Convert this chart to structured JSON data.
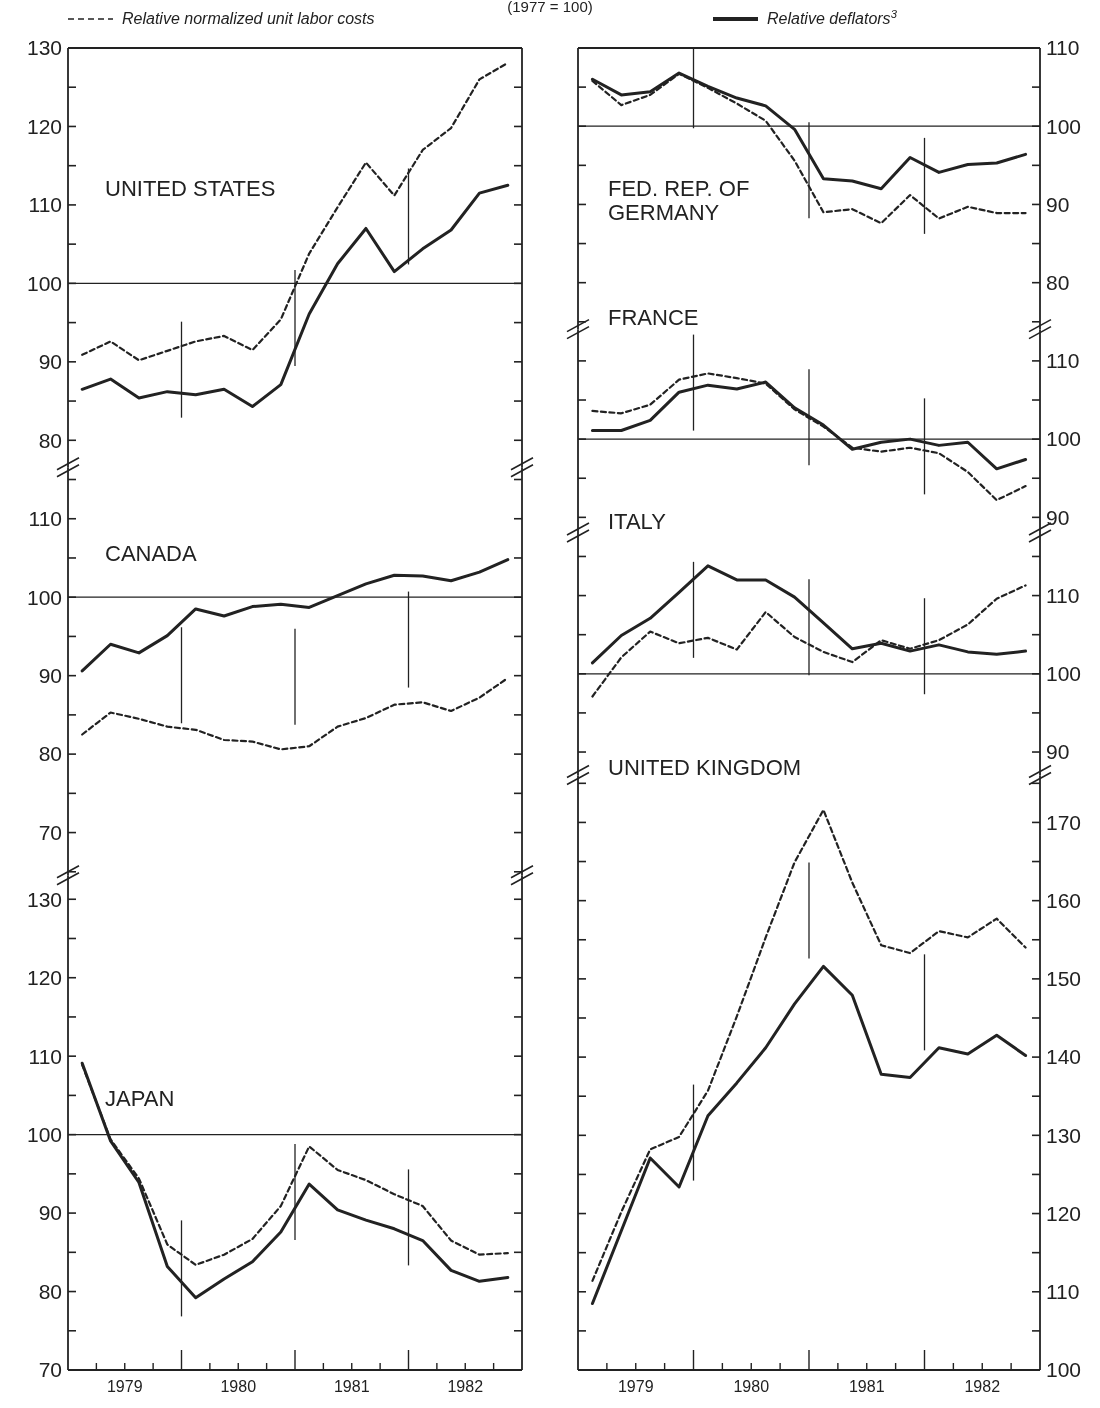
{
  "chart_data": [
    {
      "type": "line",
      "subtitle": "(1977 = 100)",
      "title": "UNITED STATES",
      "legend": "top",
      "tick_labels": "y",
      "x": [
        1979.125,
        1979.375,
        1979.625,
        1979.875,
        1980.125,
        1980.375,
        1980.625,
        1980.875,
        1981.125,
        1981.375,
        1981.625,
        1981.875,
        1982.125,
        1982.375,
        1982.625,
        1982.875
      ],
      "xlim": [
        1979,
        1983
      ],
      "ylim": [
        76.5,
        130
      ],
      "yticks": [
        80,
        {
          "value": 85,
          "label": null
        },
        90,
        {
          "value": 95,
          "label": null
        },
        100,
        {
          "value": 105,
          "label": null
        },
        110,
        {
          "value": 115,
          "label": null
        },
        120,
        {
          "value": 125,
          "label": null
        },
        130
      ],
      "series": [
        {
          "name": "Relative normalized unit labor costs",
          "color": "#222222",
          "line_style": "dashed",
          "values": [
            90.9,
            92.6,
            90.2,
            91.4,
            92.6,
            93.3,
            91.5,
            95.4,
            103.8,
            109.7,
            115.4,
            111.2,
            117.0,
            119.8,
            126.0,
            128.1
          ]
        },
        {
          "name": "Relative deflators$^{3}$",
          "color": "#222222",
          "line_style": "solid",
          "values": [
            86.5,
            87.8,
            85.4,
            86.2,
            85.8,
            86.5,
            84.3,
            87.1,
            96.1,
            102.5,
            107.0,
            101.5,
            104.4,
            106.8,
            111.5,
            112.5
          ]
        }
      ],
      "ref_lines": [
        {
          "axis": "y",
          "value": 100
        },
        {
          "axis": "x",
          "value": 1980
        },
        {
          "axis": "x",
          "value": 1981
        },
        {
          "axis": "x",
          "value": 1982
        }
      ]
    },
    {
      "type": "line",
      "title": "CANADA",
      "tick_labels": "y",
      "x": [
        1979.125,
        1979.375,
        1979.625,
        1979.875,
        1980.125,
        1980.375,
        1980.625,
        1980.875,
        1981.125,
        1981.375,
        1981.625,
        1981.875,
        1982.125,
        1982.375,
        1982.625,
        1982.875
      ],
      "xlim": [
        1979,
        1983
      ],
      "ylim": [
        64.5,
        116.5
      ],
      "yticks": [
        {
          "value": 65,
          "label": null
        },
        70,
        {
          "value": 75,
          "label": null
        },
        80,
        {
          "value": 85,
          "label": null
        },
        90,
        {
          "value": 95,
          "label": null
        },
        100,
        {
          "value": 105,
          "label": null
        },
        110,
        {
          "value": 115,
          "label": null
        }
      ],
      "series": [
        {
          "color": "#222222",
          "line_style": "dashed",
          "values": [
            82.5,
            85.3,
            84.5,
            83.5,
            83.1,
            81.8,
            81.6,
            80.6,
            81.0,
            83.5,
            84.6,
            86.3,
            86.6,
            85.5,
            87.2,
            89.7
          ]
        },
        {
          "color": "#222222",
          "line_style": "solid",
          "values": [
            90.6,
            94.0,
            92.9,
            95.1,
            98.5,
            97.6,
            98.8,
            99.1,
            98.7,
            100.2,
            101.7,
            102.8,
            102.7,
            102.1,
            103.2,
            104.8
          ]
        }
      ],
      "ref_lines": [
        {
          "axis": "y",
          "value": 100
        },
        {
          "axis": "x",
          "value": 1980
        },
        {
          "axis": "x",
          "value": 1981
        },
        {
          "axis": "x",
          "value": 1982
        }
      ]
    },
    {
      "type": "line",
      "title": "JAPAN",
      "x": [
        1979.125,
        1979.375,
        1979.625,
        1979.875,
        1980.125,
        1980.375,
        1980.625,
        1980.875,
        1981.125,
        1981.375,
        1981.625,
        1981.875,
        1982.125,
        1982.375,
        1982.625,
        1982.875
      ],
      "xlim": [
        1979,
        1983
      ],
      "xticks": [
        {
          "value": 1979.25,
          "label": null
        },
        {
          "value": 1979.5,
          "label": "1979"
        },
        {
          "value": 1979.75,
          "label": null
        },
        {
          "value": 1980.25,
          "label": null
        },
        {
          "value": 1980.5,
          "label": "1980"
        },
        {
          "value": 1980.75,
          "label": null
        },
        {
          "value": 1981.25,
          "label": null
        },
        {
          "value": 1981.5,
          "label": "1981"
        },
        {
          "value": 1981.75,
          "label": null
        },
        {
          "value": 1982.25,
          "label": null
        },
        {
          "value": 1982.5,
          "label": "1982"
        },
        {
          "value": 1982.75,
          "label": null
        }
      ],
      "ylim": [
        70,
        133
      ],
      "yticks": [
        70,
        {
          "value": 75,
          "label": null
        },
        80,
        {
          "value": 85,
          "label": null
        },
        90,
        {
          "value": 95,
          "label": null
        },
        100,
        {
          "value": 105,
          "label": null
        },
        110,
        {
          "value": 115,
          "label": null
        },
        120,
        {
          "value": 125,
          "label": null
        },
        130
      ],
      "series": [
        {
          "color": "#222222",
          "line_style": "dashed",
          "values": [
            108.9,
            99.4,
            94.4,
            86.0,
            83.4,
            84.7,
            86.7,
            90.9,
            98.5,
            95.5,
            94.2,
            92.4,
            90.9,
            86.5,
            84.7,
            84.9
          ]
        },
        {
          "color": "#222222",
          "line_style": "solid",
          "values": [
            109.1,
            99.2,
            93.9,
            83.2,
            79.2,
            81.6,
            83.8,
            87.6,
            93.7,
            90.4,
            89.1,
            88.0,
            86.5,
            82.7,
            81.3,
            81.8
          ]
        }
      ],
      "ref_lines": [
        {
          "axis": "y",
          "value": 100
        },
        {
          "axis": "x",
          "value": 1980
        },
        {
          "axis": "x",
          "value": 1981
        },
        {
          "axis": "x",
          "value": 1982
        }
      ]
    },
    {
      "type": "line",
      "title": "FED. REP. OF\nGERMANY",
      "tick_labels": "y",
      "x": [
        1979.125,
        1979.375,
        1979.625,
        1979.875,
        1980.125,
        1980.375,
        1980.625,
        1980.875,
        1981.125,
        1981.375,
        1981.625,
        1981.875,
        1982.125,
        1982.375,
        1982.625,
        1982.875
      ],
      "xlim": [
        1979,
        1983
      ],
      "ylim": [
        74,
        110
      ],
      "yticks": [
        {
          "value": 75,
          "label": null
        },
        80,
        {
          "value": 85,
          "label": null
        },
        90,
        {
          "value": 95,
          "label": null
        },
        100,
        {
          "value": 105,
          "label": null
        },
        110
      ],
      "series": [
        {
          "color": "#222222",
          "line_style": "dashed",
          "values": [
            105.8,
            102.7,
            104.0,
            106.7,
            104.9,
            102.9,
            100.7,
            95.6,
            89.0,
            89.4,
            87.6,
            91.2,
            88.2,
            89.7,
            88.9,
            88.9
          ]
        },
        {
          "color": "#222222",
          "line_style": "solid",
          "values": [
            106.0,
            104.0,
            104.4,
            106.8,
            105.1,
            103.6,
            102.6,
            99.6,
            93.3,
            93.0,
            92.0,
            96.0,
            94.1,
            95.1,
            95.3,
            96.4
          ]
        }
      ],
      "ref_lines": [
        {
          "axis": "y",
          "value": 100
        },
        {
          "axis": "x",
          "value": 1980
        },
        {
          "axis": "x",
          "value": 1981
        },
        {
          "axis": "x",
          "value": 1982
        }
      ]
    },
    {
      "type": "line",
      "title": "FRANCE",
      "tick_labels": "y",
      "x": [
        1979.125,
        1979.375,
        1979.625,
        1979.875,
        1980.125,
        1980.375,
        1980.625,
        1980.875,
        1981.125,
        1981.375,
        1981.625,
        1981.875,
        1982.125,
        1982.375,
        1982.625,
        1982.875
      ],
      "xlim": [
        1979,
        1983
      ],
      "ylim": [
        88,
        114
      ],
      "yticks": [
        90,
        {
          "value": 95,
          "label": null
        },
        100,
        {
          "value": 105,
          "label": null
        },
        110
      ],
      "series": [
        {
          "color": "#222222",
          "line_style": "dashed",
          "values": [
            103.6,
            103.3,
            104.4,
            107.6,
            108.4,
            107.8,
            107.1,
            103.8,
            101.6,
            98.9,
            98.4,
            98.9,
            98.2,
            95.8,
            92.2,
            94.0
          ]
        },
        {
          "color": "#222222",
          "line_style": "solid",
          "values": [
            101.1,
            101.1,
            102.4,
            106.0,
            106.9,
            106.4,
            107.3,
            104.0,
            101.8,
            98.7,
            99.6,
            100.0,
            99.2,
            99.6,
            96.2,
            97.4
          ]
        }
      ],
      "ref_lines": [
        {
          "axis": "y",
          "value": 100
        },
        {
          "axis": "x",
          "value": 1980
        },
        {
          "axis": "x",
          "value": 1981
        },
        {
          "axis": "x",
          "value": 1982
        }
      ]
    },
    {
      "type": "line",
      "title": "ITALY",
      "tick_labels": "y",
      "x": [
        1979.125,
        1979.375,
        1979.625,
        1979.875,
        1980.125,
        1980.375,
        1980.625,
        1980.875,
        1981.125,
        1981.375,
        1981.625,
        1981.875,
        1982.125,
        1982.375,
        1982.625,
        1982.875
      ],
      "xlim": [
        1979,
        1983
      ],
      "ylim": [
        87,
        118
      ],
      "yticks": [
        90,
        {
          "value": 95,
          "label": null
        },
        100,
        {
          "value": 105,
          "label": null
        },
        110,
        {
          "value": 115,
          "label": null
        }
      ],
      "series": [
        {
          "color": "#222222",
          "line_style": "dashed",
          "values": [
            97.1,
            102.1,
            105.4,
            103.9,
            104.6,
            103.1,
            107.9,
            104.7,
            102.8,
            101.5,
            104.3,
            103.2,
            104.3,
            106.3,
            109.6,
            111.3
          ]
        },
        {
          "color": "#222222",
          "line_style": "solid",
          "values": [
            101.4,
            104.9,
            107.1,
            110.4,
            113.8,
            112.0,
            112.0,
            109.8,
            106.5,
            103.2,
            103.9,
            102.9,
            103.7,
            102.8,
            102.5,
            102.9
          ]
        }
      ],
      "ref_lines": [
        {
          "axis": "y",
          "value": 100
        },
        {
          "axis": "x",
          "value": 1980
        },
        {
          "axis": "x",
          "value": 1981
        },
        {
          "axis": "x",
          "value": 1982
        }
      ]
    },
    {
      "type": "line",
      "title": "UNITED KINGDOM",
      "x": [
        1979.125,
        1979.375,
        1979.625,
        1979.875,
        1980.125,
        1980.375,
        1980.625,
        1980.875,
        1981.125,
        1981.375,
        1981.625,
        1981.875,
        1982.125,
        1982.375,
        1982.625,
        1982.875
      ],
      "xlim": [
        1979,
        1983
      ],
      "xticks": [
        {
          "value": 1979.25,
          "label": null
        },
        {
          "value": 1979.5,
          "label": "1979"
        },
        {
          "value": 1979.75,
          "label": null
        },
        {
          "value": 1980.25,
          "label": null
        },
        {
          "value": 1980.5,
          "label": "1980"
        },
        {
          "value": 1980.75,
          "label": null
        },
        {
          "value": 1981.25,
          "label": null
        },
        {
          "value": 1981.5,
          "label": "1981"
        },
        {
          "value": 1981.75,
          "label": null
        },
        {
          "value": 1982.25,
          "label": null
        },
        {
          "value": 1982.5,
          "label": "1982"
        },
        {
          "value": 1982.75,
          "label": null
        }
      ],
      "ylim": [
        100,
        176
      ],
      "yticks": [
        100,
        {
          "value": 105,
          "label": null
        },
        110,
        {
          "value": 115,
          "label": null
        },
        120,
        {
          "value": 125,
          "label": null
        },
        130,
        {
          "value": 135,
          "label": null
        },
        140,
        {
          "value": 145,
          "label": null
        },
        150,
        {
          "value": 155,
          "label": null
        },
        160,
        {
          "value": 165,
          "label": null
        },
        170,
        {
          "value": 175,
          "label": null
        }
      ],
      "series": [
        {
          "color": "#222222",
          "line_style": "dashed",
          "values": [
            111.4,
            120.2,
            128.2,
            129.8,
            135.7,
            145.2,
            155.3,
            164.9,
            171.6,
            162.3,
            154.3,
            153.3,
            156.1,
            155.3,
            157.7,
            154.0
          ]
        },
        {
          "color": "#222222",
          "line_style": "solid",
          "values": [
            108.5,
            117.8,
            127.1,
            123.4,
            132.5,
            136.7,
            141.2,
            146.8,
            151.6,
            147.9,
            137.8,
            137.4,
            141.2,
            140.4,
            142.8,
            140.2
          ]
        }
      ],
      "ref_lines": [
        {
          "axis": "x",
          "value": 1980
        },
        {
          "axis": "x",
          "value": 1981
        },
        {
          "axis": "x",
          "value": 1982
        }
      ]
    }
  ]
}
